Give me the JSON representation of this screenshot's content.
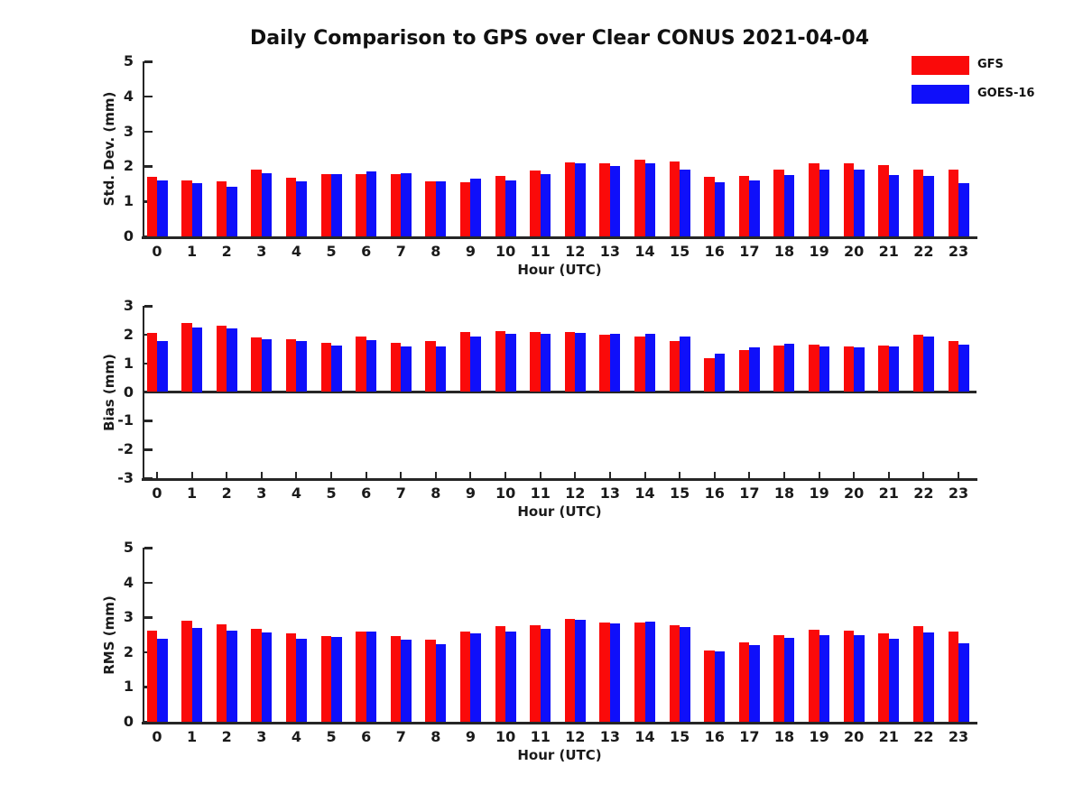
{
  "figure": {
    "title": "Daily Comparison to GPS over Clear CONUS 2021-04-04",
    "legend": [
      {
        "label": "GFS",
        "color": "#fa0a0a"
      },
      {
        "label": "GOES-16",
        "color": "#0f0ffa"
      }
    ],
    "axis_color": "#262626",
    "text_color": "#1a1a1a"
  },
  "chart_data": [
    {
      "type": "bar",
      "title": "",
      "xlabel": "Hour (UTC)",
      "ylabel": "Std. Dev. (mm)",
      "ylim": [
        0,
        5
      ],
      "yticks": [
        0,
        1,
        2,
        3,
        4,
        5
      ],
      "grid": false,
      "legend_position": "top-right",
      "categories": [
        "0",
        "1",
        "2",
        "3",
        "4",
        "5",
        "6",
        "7",
        "8",
        "9",
        "10",
        "11",
        "12",
        "13",
        "14",
        "15",
        "16",
        "17",
        "18",
        "19",
        "20",
        "21",
        "22",
        "23"
      ],
      "series": [
        {
          "name": "GFS",
          "color": "#fa0a0a",
          "values": [
            1.7,
            1.61,
            1.58,
            1.91,
            1.68,
            1.78,
            1.78,
            1.78,
            1.58,
            1.54,
            1.73,
            1.87,
            2.12,
            2.08,
            2.18,
            2.13,
            1.7,
            1.72,
            1.92,
            2.1,
            2.1,
            2.03,
            1.92,
            1.9
          ]
        },
        {
          "name": "GOES-16",
          "color": "#0f0ffa",
          "values": [
            1.6,
            1.52,
            1.42,
            1.8,
            1.57,
            1.78,
            1.86,
            1.81,
            1.58,
            1.64,
            1.6,
            1.79,
            2.1,
            2.01,
            2.08,
            1.92,
            1.55,
            1.59,
            1.74,
            1.9,
            1.92,
            1.74,
            1.72,
            1.53
          ]
        }
      ]
    },
    {
      "type": "bar",
      "title": "",
      "xlabel": "Hour (UTC)",
      "ylabel": "Bias (mm)",
      "ylim": [
        -3,
        3
      ],
      "yticks": [
        -3,
        -2,
        -1,
        0,
        1,
        2,
        3
      ],
      "grid": false,
      "categories": [
        "0",
        "1",
        "2",
        "3",
        "4",
        "5",
        "6",
        "7",
        "8",
        "9",
        "10",
        "11",
        "12",
        "13",
        "14",
        "15",
        "16",
        "17",
        "18",
        "19",
        "20",
        "21",
        "22",
        "23"
      ],
      "series": [
        {
          "name": "GFS",
          "color": "#fa0a0a",
          "values": [
            2.05,
            2.4,
            2.3,
            1.9,
            1.85,
            1.72,
            1.93,
            1.7,
            1.79,
            2.1,
            2.13,
            2.1,
            2.1,
            1.98,
            1.92,
            1.78,
            1.18,
            1.46,
            1.62,
            1.65,
            1.6,
            1.62,
            2.0,
            1.78
          ]
        },
        {
          "name": "GOES-16",
          "color": "#0f0ffa",
          "values": [
            1.78,
            2.25,
            2.22,
            1.83,
            1.78,
            1.63,
            1.8,
            1.6,
            1.59,
            1.92,
            2.02,
            2.03,
            2.05,
            2.04,
            2.02,
            1.94,
            1.35,
            1.55,
            1.68,
            1.58,
            1.55,
            1.58,
            1.93,
            1.65
          ]
        }
      ]
    },
    {
      "type": "bar",
      "title": "",
      "xlabel": "Hour (UTC)",
      "ylabel": "RMS (mm)",
      "ylim": [
        0,
        5
      ],
      "yticks": [
        0,
        1,
        2,
        3,
        4,
        5
      ],
      "grid": false,
      "categories": [
        "0",
        "1",
        "2",
        "3",
        "4",
        "5",
        "6",
        "7",
        "8",
        "9",
        "10",
        "11",
        "12",
        "13",
        "14",
        "15",
        "16",
        "17",
        "18",
        "19",
        "20",
        "21",
        "22",
        "23"
      ],
      "series": [
        {
          "name": "GFS",
          "color": "#fa0a0a",
          "values": [
            2.62,
            2.9,
            2.8,
            2.68,
            2.53,
            2.47,
            2.6,
            2.45,
            2.36,
            2.58,
            2.74,
            2.77,
            2.95,
            2.84,
            2.86,
            2.76,
            2.05,
            2.28,
            2.5,
            2.65,
            2.62,
            2.55,
            2.75,
            2.6
          ]
        },
        {
          "name": "GOES-16",
          "color": "#0f0ffa",
          "values": [
            2.39,
            2.7,
            2.62,
            2.57,
            2.39,
            2.44,
            2.58,
            2.36,
            2.24,
            2.54,
            2.6,
            2.68,
            2.92,
            2.83,
            2.88,
            2.72,
            2.02,
            2.2,
            2.42,
            2.48,
            2.5,
            2.38,
            2.57,
            2.26
          ]
        }
      ]
    }
  ]
}
